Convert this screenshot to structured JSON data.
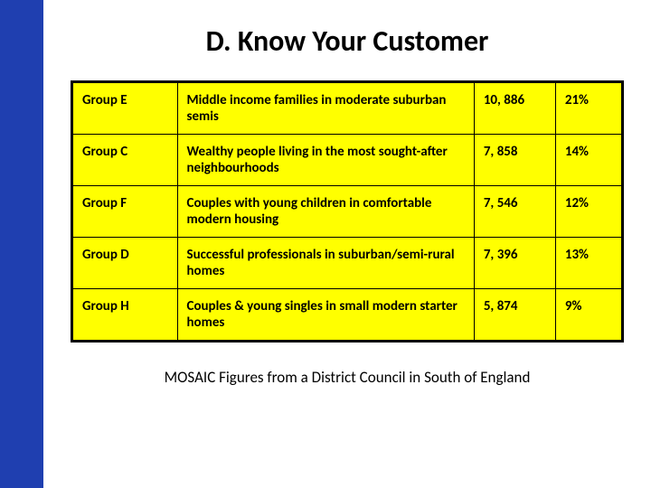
{
  "title": "D. Know Your Customer",
  "table": {
    "background_color": "#ffff00",
    "border_color": "#000000",
    "rows": [
      {
        "group": "Group E",
        "description": "Middle income families in moderate suburban semis",
        "count": "10, 886",
        "percent": "21%"
      },
      {
        "group": "Group C",
        "description": "Wealthy people living in the most sought-after neighbourhoods",
        "count": "7, 858",
        "percent": "14%"
      },
      {
        "group": "Group F",
        "description": "Couples with young children in comfortable modern housing",
        "count": "7, 546",
        "percent": "12%"
      },
      {
        "group": "Group D",
        "description": "Successful professionals in suburban/semi-rural homes",
        "count": "7, 396",
        "percent": "13%"
      },
      {
        "group": "Group H",
        "description": "Couples  & young singles in small modern starter homes",
        "count": "5, 874",
        "percent": "9%"
      }
    ]
  },
  "caption": "MOSAIC Figures from a District Council in South of England",
  "stripe_color": "#1f3fb0"
}
